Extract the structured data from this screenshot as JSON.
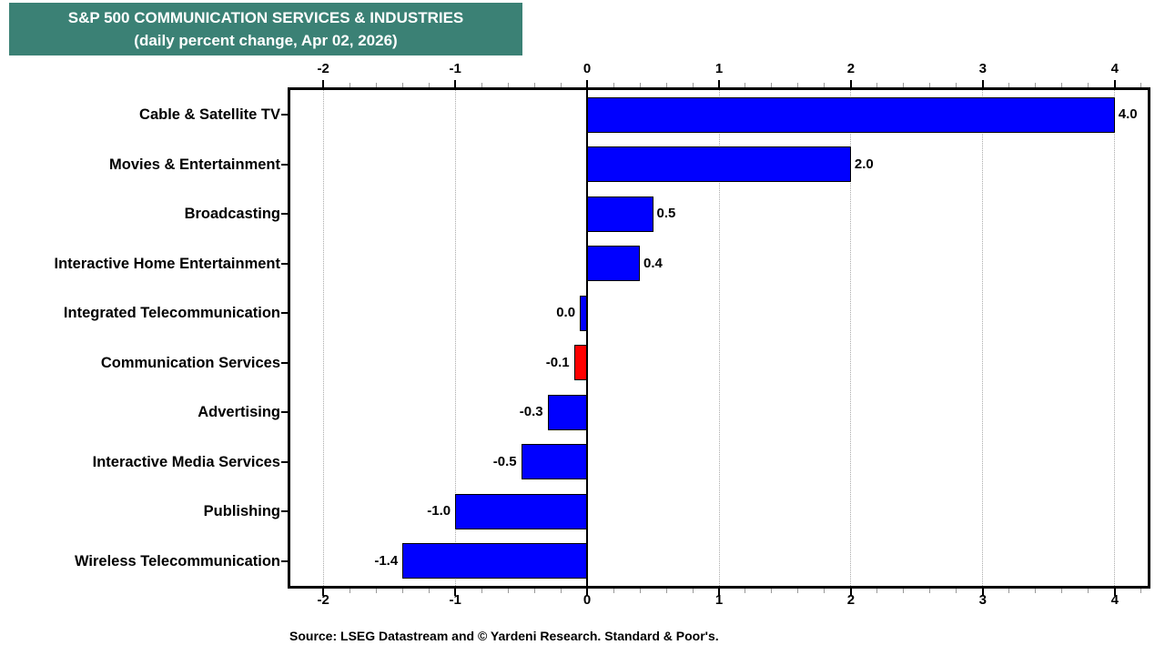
{
  "title": {
    "line1": "S&P 500 COMMUNICATION SERVICES & INDUSTRIES",
    "line2": "(daily percent change, Apr 02, 2026)"
  },
  "source_note": "Source: LSEG Datastream and © Yardeni Research. Standard & Poor's.",
  "colors": {
    "background": "#FFFFFF",
    "banner_bg": "#3B8175",
    "banner_text": "#FFFFFF",
    "bar_blue": "#0000FF",
    "bar_red": "#FF0000",
    "bar_border": "#000000",
    "gridline": "#AAAAAA",
    "axis": "#000000",
    "minor_tick": "#999999",
    "text": "#000000"
  },
  "chart_data": {
    "type": "bar",
    "orientation": "horizontal",
    "title": "S&P 500 COMMUNICATION SERVICES & INDUSTRIES",
    "subtitle": "(daily percent change, Apr 02, 2026)",
    "categories": [
      "Cable & Satellite TV",
      "Movies & Entertainment",
      "Broadcasting",
      "Interactive Home Entertainment",
      "Integrated Telecommunication",
      "Communication Services",
      "Advertising",
      "Interactive Media Services",
      "Publishing",
      "Wireless Telecommunication"
    ],
    "values": [
      4.0,
      2.0,
      0.5,
      0.4,
      0.0,
      -0.1,
      -0.3,
      -0.5,
      -1.0,
      -1.4
    ],
    "value_labels": [
      "4.0",
      "2.0",
      "0.5",
      "0.4",
      "0.0",
      "-0.1",
      "-0.3",
      "-0.5",
      "-1.0",
      "-1.4"
    ],
    "highlight_index": 5,
    "highlight_category": "Communication Services",
    "xlabel": "",
    "ylabel": "",
    "xlim": [
      -2.25,
      4.25
    ],
    "major_ticks": [
      -2,
      -1,
      0,
      1,
      2,
      3,
      4
    ],
    "minor_tick_step": 0.2,
    "gridlines_at": [
      -2,
      -1,
      1,
      2,
      3,
      4
    ],
    "zero_line": true,
    "axis_label_rows": "top and bottom",
    "grid": "vertical dotted",
    "legend": "none"
  }
}
